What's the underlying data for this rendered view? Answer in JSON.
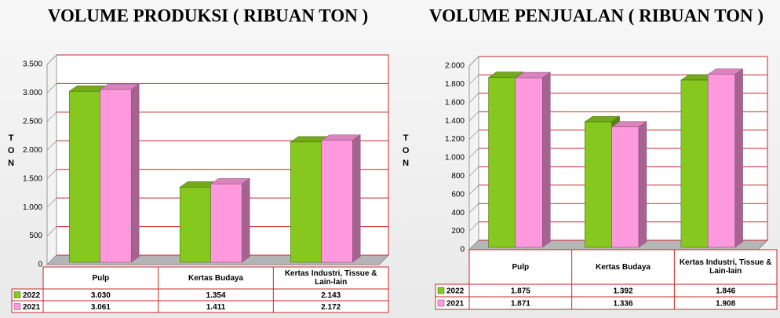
{
  "chart_data": [
    {
      "type": "bar3d",
      "title": "VOLUME PRODUKSI ( RIBUAN TON )",
      "y_label": "TON",
      "categories": [
        "Pulp",
        "Kertas Budaya",
        "Kertas Industri, Tissue & Lain-lain"
      ],
      "series": [
        {
          "name": "2022",
          "color": "#86c81e",
          "values": [
            3030,
            1354,
            2143
          ],
          "value_labels": [
            "3.030",
            "1.354",
            "2.143"
          ]
        },
        {
          "name": "2021",
          "color": "#ff99dd",
          "values": [
            3061,
            1411,
            2172
          ],
          "value_labels": [
            "3.061",
            "1.411",
            "2.172"
          ]
        }
      ],
      "ylim": [
        0,
        3500
      ],
      "yticks": [
        0,
        500,
        {
          "value": 1000,
          "label": "1.000"
        },
        {
          "value": 1500,
          "label": "1.500"
        },
        {
          "value": 2000,
          "label": "2.000"
        },
        {
          "value": 2500,
          "label": "2.500"
        },
        {
          "value": 3000,
          "label": "3.000"
        },
        {
          "value": 3500,
          "label": "3.500"
        }
      ],
      "grid": true
    },
    {
      "type": "bar3d",
      "title": "VOLUME PENJUALAN ( RIBUAN TON )",
      "y_label": "TON",
      "categories": [
        "Pulp",
        "Kertas Budaya",
        "Kertas Industri, Tissue & Lain-lain"
      ],
      "series": [
        {
          "name": "2022",
          "color": "#86c81e",
          "values": [
            1875,
            1392,
            1846
          ],
          "value_labels": [
            "1.875",
            "1.392",
            "1.846"
          ]
        },
        {
          "name": "2021",
          "color": "#ff99dd",
          "values": [
            1871,
            1336,
            1908
          ],
          "value_labels": [
            "1.871",
            "1.336",
            "1.908"
          ]
        }
      ],
      "ylim": [
        0,
        2000
      ],
      "yticks": [
        0,
        200,
        400,
        600,
        800,
        {
          "value": 1000,
          "label": "1.000"
        },
        {
          "value": 1200,
          "label": "1.200"
        },
        {
          "value": 1400,
          "label": "1.400"
        },
        {
          "value": 1600,
          "label": "1.600"
        },
        {
          "value": 1800,
          "label": "1.800"
        },
        {
          "value": 2000,
          "label": "2.000"
        }
      ],
      "grid": true
    }
  ]
}
